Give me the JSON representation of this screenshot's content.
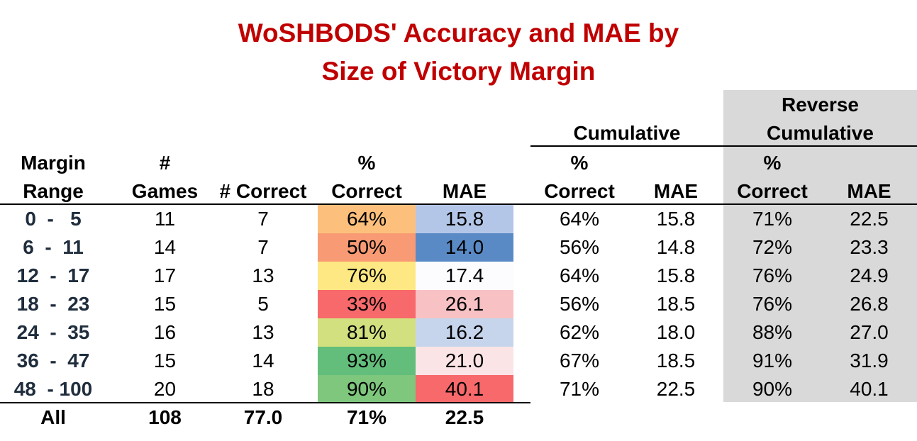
{
  "chart_data": {
    "type": "table",
    "title_line1": "WoSHBODS' Accuracy and MAE by",
    "title_line2": "Size of Victory Margin",
    "group_headers": {
      "cumulative": "Cumulative",
      "reverse_line1": "Reverse",
      "reverse_line2": "Cumulative"
    },
    "columns": {
      "margin_line1": "Margin",
      "margin_line2": "Range",
      "games_line1": "#",
      "games_line2": "Games",
      "correct": "# Correct",
      "pct_line1": "%",
      "pct_line2": "Correct",
      "mae": "MAE",
      "cum_pct_line1": "%",
      "cum_pct_line2": "Correct",
      "cum_mae": "MAE",
      "rev_pct_line1": "%",
      "rev_pct_line2": "Correct",
      "rev_mae": "MAE"
    },
    "rows": [
      {
        "range": "0  -   5",
        "games": "11",
        "correct": "7",
        "pct": "64%",
        "mae": "15.8",
        "cum_pct": "64%",
        "cum_mae": "15.8",
        "rev_pct": "71%",
        "rev_mae": "22.5"
      },
      {
        "range": "6  -  11",
        "games": "14",
        "correct": "7",
        "pct": "50%",
        "mae": "14.0",
        "cum_pct": "56%",
        "cum_mae": "14.8",
        "rev_pct": "72%",
        "rev_mae": "23.3"
      },
      {
        "range": "12  -  17",
        "games": "17",
        "correct": "13",
        "pct": "76%",
        "mae": "17.4",
        "cum_pct": "64%",
        "cum_mae": "15.8",
        "rev_pct": "76%",
        "rev_mae": "24.9"
      },
      {
        "range": "18  -  23",
        "games": "15",
        "correct": "5",
        "pct": "33%",
        "mae": "26.1",
        "cum_pct": "56%",
        "cum_mae": "18.5",
        "rev_pct": "76%",
        "rev_mae": "26.8"
      },
      {
        "range": "24  -  35",
        "games": "16",
        "correct": "13",
        "pct": "81%",
        "mae": "16.2",
        "cum_pct": "62%",
        "cum_mae": "18.0",
        "rev_pct": "88%",
        "rev_mae": "27.0"
      },
      {
        "range": "36  -  47",
        "games": "15",
        "correct": "14",
        "pct": "93%",
        "mae": "21.0",
        "cum_pct": "67%",
        "cum_mae": "18.5",
        "rev_pct": "91%",
        "rev_mae": "31.9"
      },
      {
        "range": "48  - 100",
        "games": "20",
        "correct": "18",
        "pct": "90%",
        "mae": "40.1",
        "cum_pct": "71%",
        "cum_mae": "22.5",
        "rev_pct": "90%",
        "rev_mae": "40.1"
      }
    ],
    "totals": {
      "label": "All",
      "games": "108",
      "correct": "77.0",
      "pct": "71%",
      "mae": "22.5"
    },
    "pct_colors": [
      "#fdc07c",
      "#f89b74",
      "#fde883",
      "#f8696b",
      "#d3e07f",
      "#63be7b",
      "#7ec77d"
    ],
    "mae_colors": [
      "#b4c6e7",
      "#5a8ac6",
      "#fcfcff",
      "#f8c2c4",
      "#c6d4ec",
      "#fbe4e6",
      "#f8696b"
    ],
    "reverse_bg": "#d9d9d9",
    "title_color": "#c00000"
  }
}
